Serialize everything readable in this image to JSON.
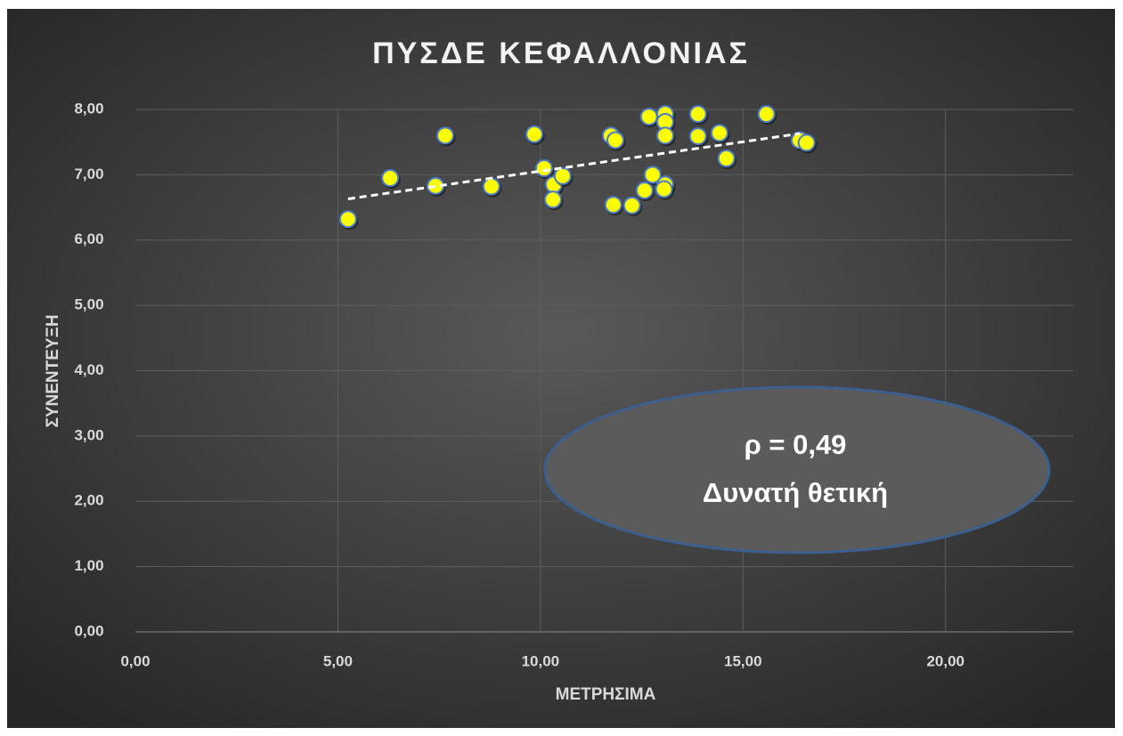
{
  "chart_data": {
    "type": "scatter",
    "title": "ΠΥΣΔΕ ΚΕΦΑΛΛΟΝΙΑΣ",
    "x_label": "ΜΕΤΡΗΣΙΜΑ",
    "y_label": "ΣΥΝΕΝΤΕΥΞΗ",
    "series": [
      {
        "color": "#ffff00",
        "x": [
          5.25,
          6.29,
          7.41,
          7.65,
          8.79,
          9.85,
          10.09,
          10.33,
          10.31,
          10.55,
          11.74,
          11.85,
          11.8,
          12.26,
          12.57,
          12.68,
          12.77,
          13.08,
          13.05,
          13.08,
          13.08,
          13.08,
          13.89,
          13.89,
          14.42,
          14.59,
          15.58,
          16.4,
          16.57
        ],
        "values": [
          6.32,
          6.95,
          6.83,
          7.6,
          6.82,
          7.62,
          7.1,
          6.85,
          6.62,
          6.98,
          7.6,
          7.53,
          6.54,
          6.53,
          6.76,
          7.89,
          7.0,
          6.85,
          6.78,
          7.93,
          7.81,
          7.6,
          7.93,
          7.59,
          7.64,
          7.25,
          7.93,
          7.53,
          7.49
        ]
      }
    ],
    "trendline": {
      "x": [
        5.25,
        16.4
      ],
      "y": [
        6.63,
        7.63
      ]
    },
    "xlim": [
      0,
      23.15
    ],
    "xticks": [
      {
        "value": 0,
        "label": "0,00"
      },
      {
        "value": 5,
        "label": "5,00"
      },
      {
        "value": 10,
        "label": "10,00"
      },
      {
        "value": 15,
        "label": "15,00"
      },
      {
        "value": 20,
        "label": "20,00"
      }
    ],
    "ylim": [
      0,
      8
    ],
    "yticks": [
      {
        "value": 0,
        "label": "0,00"
      },
      {
        "value": 1,
        "label": "1,00"
      },
      {
        "value": 2,
        "label": "2,00"
      },
      {
        "value": 3,
        "label": "3,00"
      },
      {
        "value": 4,
        "label": "4,00"
      },
      {
        "value": 5,
        "label": "5,00"
      },
      {
        "value": 6,
        "label": "6,00"
      },
      {
        "value": 7,
        "label": "7,00"
      },
      {
        "value": 8,
        "label": "8,00"
      }
    ],
    "grid": true,
    "annotation": [
      "ρ = 0,49",
      "Δυνατή θετική"
    ]
  }
}
